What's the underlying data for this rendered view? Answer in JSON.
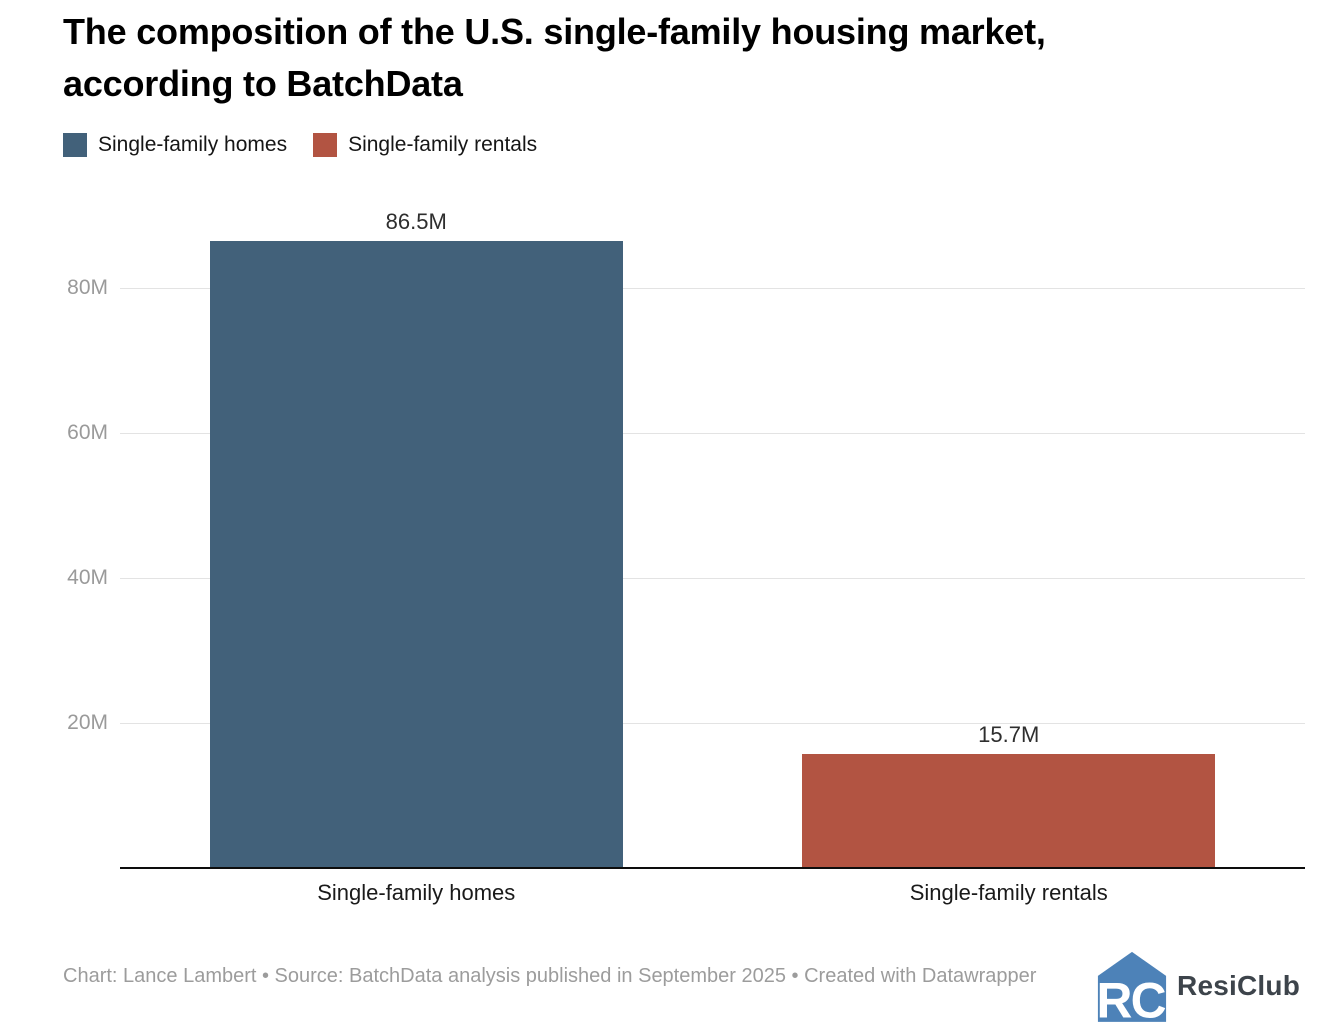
{
  "title": {
    "lines": [
      "The composition of the U.S. single-family housing market,",
      "according to BatchData"
    ]
  },
  "legend": {
    "items": [
      {
        "label": "Single-family homes",
        "color": "#42617a"
      },
      {
        "label": "Single-family rentals",
        "color": "#b25442"
      }
    ]
  },
  "chart_data": {
    "type": "bar",
    "title": "The composition of the U.S. single-family housing market, according to BatchData",
    "categories": [
      "Single-family homes",
      "Single-family rentals"
    ],
    "values": [
      86.5,
      15.7
    ],
    "value_labels": [
      "86.5M",
      "15.7M"
    ],
    "bar_colors": [
      "#42617a",
      "#b25442"
    ],
    "unit": "M",
    "ylim": [
      0,
      93.5
    ],
    "yticks": [
      20,
      40,
      60,
      80
    ],
    "ytick_labels": [
      "20M",
      "40M",
      "60M",
      "80M"
    ],
    "grid": true,
    "legend_position": "top"
  },
  "footer": {
    "attribution": "Chart: Lance Lambert • Source: BatchData analysis published in September 2025 • Created with Datawrapper",
    "brand": "ResiClub"
  },
  "colors": {
    "bar_blue": "#42617a",
    "bar_red": "#b25442",
    "logo_blue": "#4d82b8",
    "gridline": "#e3e3e3",
    "axis_line": "#0d0d0d"
  }
}
